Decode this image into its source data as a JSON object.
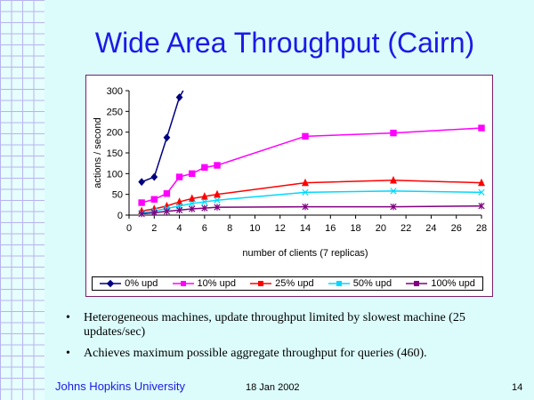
{
  "slide": {
    "title": "Wide Area Throughput (Cairn)",
    "bullets": [
      "Heterogeneous machines, update throughput limited by slowest machine (25 updates/sec)",
      "Achieves maximum possible aggregate throughput for queries (460)."
    ],
    "footer": {
      "org": "Johns Hopkins University",
      "date": "18 Jan 2002",
      "page": "14"
    }
  },
  "chart_data": {
    "type": "line",
    "xlabel": "number of clients (7 replicas)",
    "ylabel": "actions / second",
    "xlim": [
      0,
      28
    ],
    "ylim": [
      0,
      300
    ],
    "xticks": [
      0,
      2,
      4,
      6,
      8,
      10,
      12,
      14,
      16,
      18,
      20,
      22,
      24,
      26,
      28
    ],
    "yticks": [
      0,
      50,
      100,
      150,
      200,
      250,
      300
    ],
    "legend_position": "bottom",
    "grid": false,
    "series": [
      {
        "name": "0% upd",
        "color": "#000080",
        "marker": "diamond",
        "x": [
          1,
          2,
          3,
          4,
          4.3
        ],
        "y": [
          80,
          92,
          187,
          284,
          300
        ]
      },
      {
        "name": "10% upd",
        "color": "#ff00ff",
        "marker": "square",
        "x": [
          1,
          2,
          3,
          4,
          5,
          6,
          7,
          14,
          21,
          28
        ],
        "y": [
          30,
          38,
          52,
          92,
          100,
          115,
          120,
          190,
          198,
          210
        ]
      },
      {
        "name": "25% upd",
        "color": "#ff0000",
        "marker": "triangle",
        "x": [
          1,
          2,
          3,
          4,
          5,
          6,
          7,
          14,
          21,
          28
        ],
        "y": [
          10,
          15,
          22,
          32,
          40,
          45,
          50,
          78,
          84,
          78
        ]
      },
      {
        "name": "50% upd",
        "color": "#00d8ff",
        "marker": "x",
        "x": [
          1,
          2,
          3,
          4,
          5,
          6,
          7,
          14,
          21,
          28
        ],
        "y": [
          5,
          10,
          16,
          22,
          28,
          32,
          36,
          55,
          58,
          55
        ]
      },
      {
        "name": "100% upd",
        "color": "#800080",
        "marker": "star",
        "x": [
          1,
          2,
          3,
          4,
          5,
          6,
          7,
          14,
          21,
          28
        ],
        "y": [
          3,
          6,
          9,
          12,
          15,
          17,
          19,
          20,
          20,
          22
        ]
      }
    ]
  }
}
